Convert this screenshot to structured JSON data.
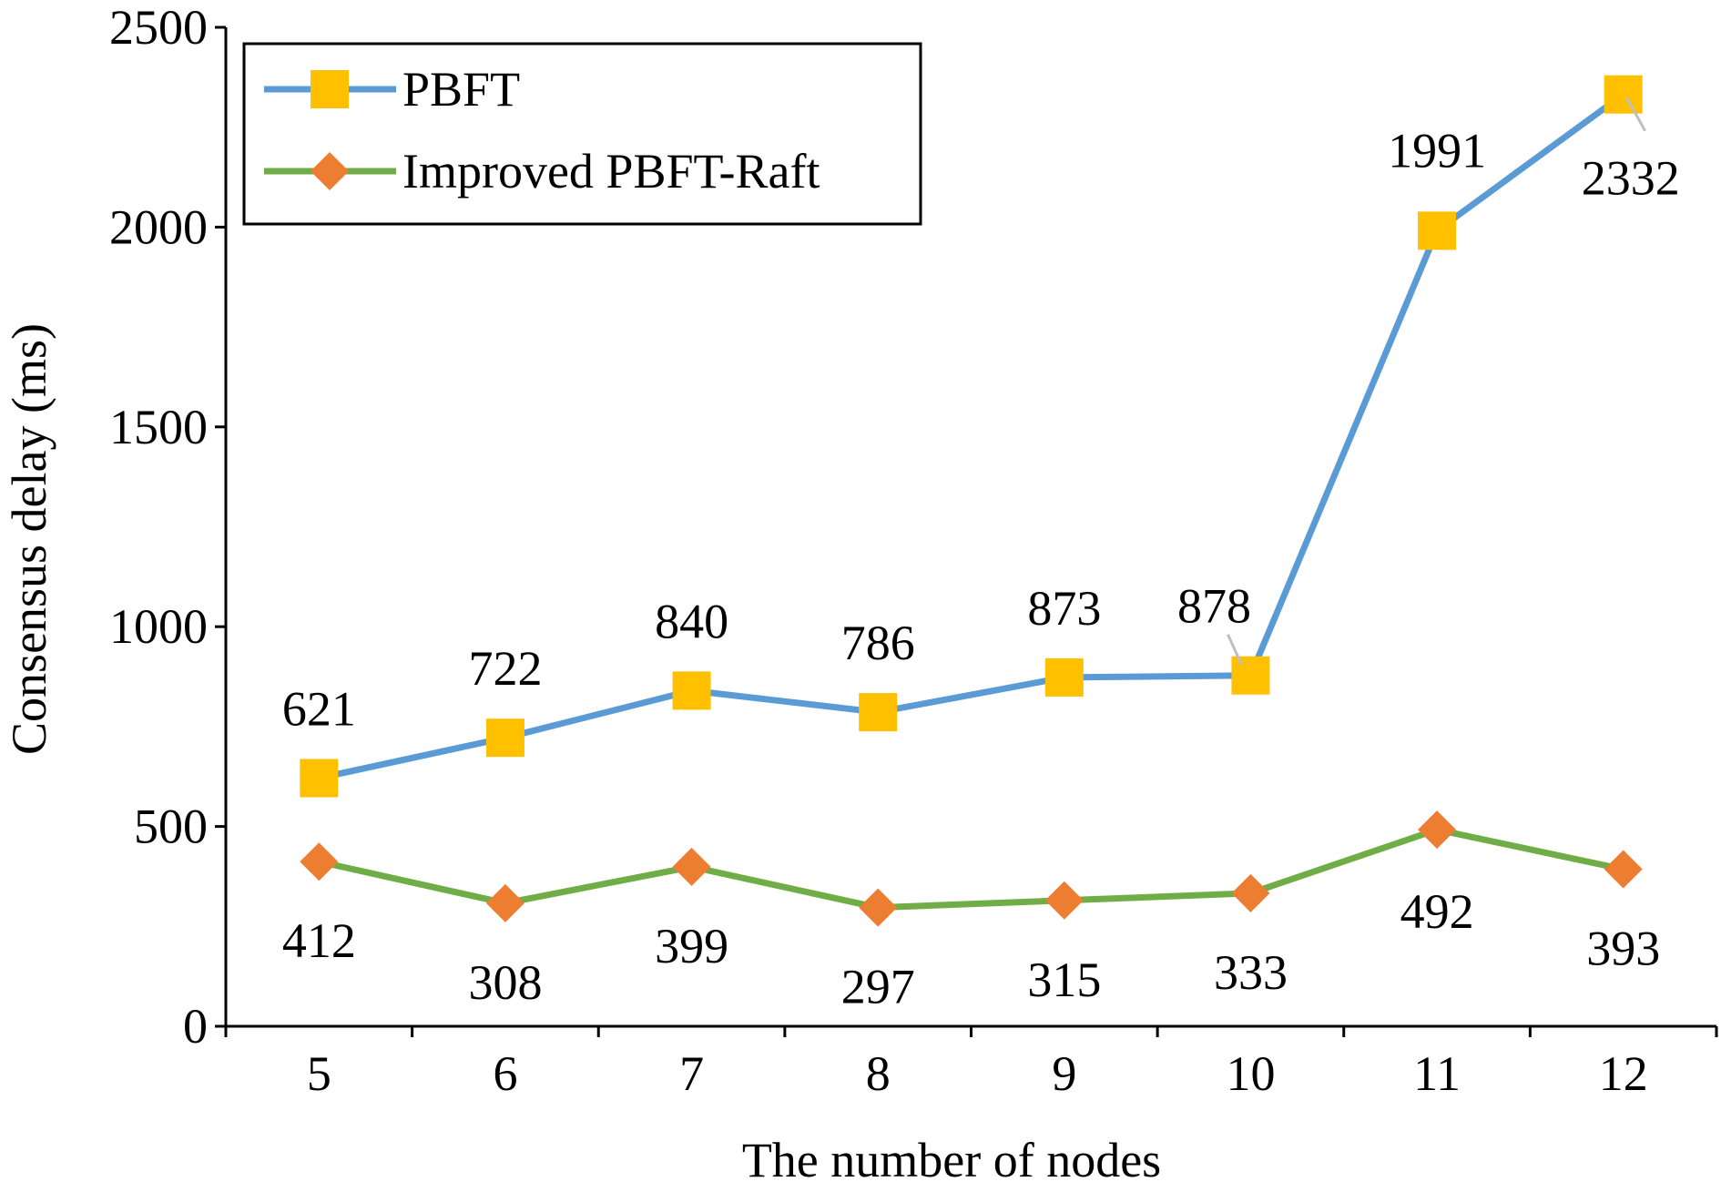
{
  "chart_data": {
    "type": "line",
    "title": "",
    "xlabel": "The number of nodes",
    "ylabel": "Consensus delay (ms)",
    "categories": [
      "5",
      "6",
      "7",
      "8",
      "9",
      "10",
      "11",
      "12"
    ],
    "ylim": [
      0,
      2500
    ],
    "yticks": [
      0,
      500,
      1000,
      1500,
      2000,
      2500
    ],
    "grid": false,
    "legend_position": "top-left",
    "series": [
      {
        "name": "PBFT",
        "marker": "square",
        "line_color": "#5b9bd5",
        "marker_color": "#ffc000",
        "values": [
          621,
          722,
          840,
          786,
          873,
          878,
          1991,
          2332
        ],
        "labels": [
          "621",
          "722",
          "840",
          "786",
          "873",
          "878",
          "1991",
          "2332"
        ]
      },
      {
        "name": "Improved PBFT-Raft",
        "marker": "diamond",
        "line_color": "#70ad47",
        "marker_color": "#ed7d31",
        "values": [
          412,
          308,
          399,
          297,
          315,
          333,
          492,
          393
        ],
        "labels": [
          "412",
          "308",
          "399",
          "297",
          "315",
          "333",
          "492",
          "393"
        ]
      }
    ]
  }
}
